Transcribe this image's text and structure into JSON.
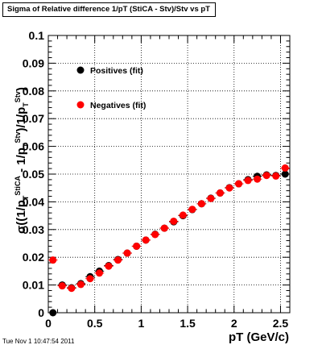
{
  "title": "Sigma of Relative difference 1/pT (StiCA - Stv)/Stv vs pT",
  "timestamp": "Tue Nov  1 10:47:54 2011",
  "chart_data": {
    "type": "scatter",
    "title": "Sigma of Relative difference 1/pT (StiCA - Stv)/Stv vs pT",
    "xlabel": "pT (GeV/c)",
    "ylabel": {
      "sigma": "σ((1/p",
      "sub1": "T",
      "sup1": "StiCA",
      "middle": " - 1/p",
      "sub2": "T",
      "sup2": "Stv",
      "middle2": ")/1/p",
      "sub3": "T",
      "sup3": "Stv",
      "end": ")"
    },
    "xlim": [
      0,
      2.6
    ],
    "ylim": [
      0,
      0.1
    ],
    "xticks": [
      0,
      0.5,
      1,
      1.5,
      2,
      2.5
    ],
    "xtick_labels": [
      "0",
      "0.5",
      "1",
      "1.5",
      "2",
      "2.5"
    ],
    "yticks": [
      0,
      0.01,
      0.02,
      0.03,
      0.04,
      0.05,
      0.06,
      0.07,
      0.08,
      0.09,
      0.1
    ],
    "ytick_labels": [
      "0",
      "0.01",
      "0.02",
      "0.03",
      "0.04",
      "0.05",
      "0.06",
      "0.07",
      "0.08",
      "0.09",
      "0.1"
    ],
    "grid": true,
    "legend_position": "top-left",
    "series": [
      {
        "name": "Positives (fit)",
        "color": "#000000",
        "x": [
          0.05,
          0.15,
          0.25,
          0.35,
          0.45,
          0.55,
          0.65,
          0.75,
          0.85,
          0.95,
          1.05,
          1.15,
          1.25,
          1.35,
          1.45,
          1.55,
          1.65,
          1.75,
          1.85,
          1.95,
          2.05,
          2.15,
          2.25,
          2.35,
          2.45,
          2.55
        ],
        "y": [
          0.0,
          0.01,
          0.009,
          0.0105,
          0.013,
          0.015,
          0.017,
          0.0192,
          0.0215,
          0.024,
          0.0262,
          0.0283,
          0.0305,
          0.0328,
          0.035,
          0.0372,
          0.0393,
          0.0413,
          0.0432,
          0.0451,
          0.0465,
          0.048,
          0.0492,
          0.0497,
          0.0495,
          0.05
        ]
      },
      {
        "name": "Negatives (fit)",
        "color": "#ff0000",
        "x": [
          0.05,
          0.15,
          0.25,
          0.35,
          0.45,
          0.55,
          0.65,
          0.75,
          0.85,
          0.95,
          1.05,
          1.15,
          1.25,
          1.35,
          1.45,
          1.55,
          1.65,
          1.75,
          1.85,
          1.95,
          2.05,
          2.15,
          2.25,
          2.35,
          2.45,
          2.55
        ],
        "y": [
          0.019,
          0.0097,
          0.0088,
          0.0102,
          0.0123,
          0.0143,
          0.0168,
          0.019,
          0.0215,
          0.024,
          0.0262,
          0.0282,
          0.0305,
          0.033,
          0.0352,
          0.0373,
          0.0393,
          0.0412,
          0.0432,
          0.045,
          0.0465,
          0.0477,
          0.0482,
          0.0495,
          0.0493,
          0.0522
        ]
      }
    ]
  }
}
